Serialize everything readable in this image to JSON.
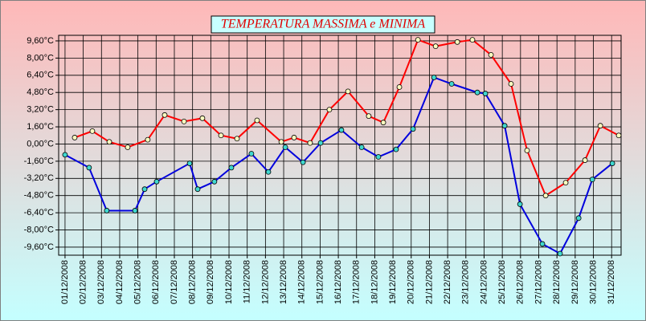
{
  "chart_data": {
    "type": "line",
    "title": "TEMPERATURA MASSIMA e MINIMA",
    "xlim": [
      0.65,
      31.52
    ],
    "xticks": [
      {
        "value": 1,
        "label": "01/12/2008"
      },
      {
        "value": 2,
        "label": "02/12/2008"
      },
      {
        "value": 3,
        "label": "03/12/2008"
      },
      {
        "value": 4,
        "label": "04/12/2008"
      },
      {
        "value": 5,
        "label": "05/12/2008"
      },
      {
        "value": 6,
        "label": "06/12/2008"
      },
      {
        "value": 7,
        "label": "07/12/2008"
      },
      {
        "value": 8,
        "label": "08/12/2008"
      },
      {
        "value": 9,
        "label": "09/12/2008"
      },
      {
        "value": 10,
        "label": "10/12/2008"
      },
      {
        "value": 11,
        "label": "11/12/2008"
      },
      {
        "value": 12,
        "label": "12/12/2008"
      },
      {
        "value": 13,
        "label": "13/12/2008"
      },
      {
        "value": 14,
        "label": "14/12/2008"
      },
      {
        "value": 15,
        "label": "15/12/2008"
      },
      {
        "value": 16,
        "label": "16/12/2008"
      },
      {
        "value": 17,
        "label": "17/12/2008"
      },
      {
        "value": 18,
        "label": "18/12/2008"
      },
      {
        "value": 19,
        "label": "19/12/2008"
      },
      {
        "value": 20,
        "label": "20/12/2008"
      },
      {
        "value": 21,
        "label": "21/12/2008"
      },
      {
        "value": 22,
        "label": "22/12/2008"
      },
      {
        "value": 23,
        "label": "23/12/2008"
      },
      {
        "value": 24,
        "label": "24/12/2008"
      },
      {
        "value": 25,
        "label": "25/12/2008"
      },
      {
        "value": 26,
        "label": "26/12/2008"
      },
      {
        "value": 27,
        "label": "27/12/2008"
      },
      {
        "value": 28,
        "label": "28/12/2008"
      },
      {
        "value": 29,
        "label": "29/12/2008"
      },
      {
        "value": 30,
        "label": "30/12/2008"
      },
      {
        "value": 31,
        "label": "31/12/2008"
      }
    ],
    "ylim": [
      -10.35,
      10.12
    ],
    "yticks": [
      {
        "value": 9.6,
        "label": "9,60°C"
      },
      {
        "value": 8.0,
        "label": "8,00°C"
      },
      {
        "value": 6.4,
        "label": "6,40°C"
      },
      {
        "value": 4.8,
        "label": "4,80°C"
      },
      {
        "value": 3.2,
        "label": "3,20°C"
      },
      {
        "value": 1.6,
        "label": "1,60°C"
      },
      {
        "value": 0,
        "label": "0,00°C"
      },
      {
        "value": -1.6,
        "label": "-1,60°C"
      },
      {
        "value": -3.2,
        "label": "-3,20°C"
      },
      {
        "value": -4.8,
        "label": "-4,80°C"
      },
      {
        "value": -6.4,
        "label": "-6,40°C"
      },
      {
        "value": -8.0,
        "label": "-8,00°C"
      },
      {
        "value": -9.6,
        "label": "-9,60°C"
      }
    ],
    "grid": true,
    "series": [
      {
        "color": "#ff0000",
        "marker_fill": "#ffffc0",
        "x": [
          1.53,
          2.5,
          3.43,
          4.44,
          5.54,
          6.47,
          7.53,
          8.54,
          9.56,
          10.44,
          11.54,
          12.87,
          13.57,
          14.45,
          15.51,
          16.53,
          17.67,
          18.47,
          19.35,
          20.37,
          21.34,
          22.53,
          23.36,
          24.38,
          25.48,
          26.36,
          27.38,
          28.48,
          29.54,
          30.38,
          31.39
        ],
        "values": [
          0.6,
          1.2,
          0.2,
          -0.3,
          0.4,
          2.7,
          2.1,
          2.4,
          0.8,
          0.5,
          2.2,
          0.2,
          0.6,
          0.1,
          3.2,
          4.9,
          2.6,
          2.0,
          5.3,
          9.7,
          9.1,
          9.5,
          9.7,
          8.3,
          5.6,
          -0.6,
          -4.8,
          -3.6,
          -1.5,
          1.7,
          0.8
        ]
      },
      {
        "color": "#0000dd",
        "marker_fill": "#40d8d0",
        "x": [
          1.0,
          2.32,
          3.29,
          4.84,
          5.37,
          6.03,
          7.84,
          8.28,
          9.2,
          10.13,
          11.23,
          12.16,
          13.09,
          14.06,
          15.03,
          16.17,
          17.28,
          18.2,
          19.17,
          20.1,
          21.25,
          22.22,
          23.63,
          24.07,
          25.13,
          25.97,
          27.2,
          28.17,
          29.19,
          29.94,
          31.04
        ],
        "values": [
          -1.0,
          -2.2,
          -6.2,
          -6.2,
          -4.2,
          -3.5,
          -1.8,
          -4.2,
          -3.5,
          -2.2,
          -0.9,
          -2.6,
          -0.3,
          -1.7,
          0.1,
          1.3,
          -0.3,
          -1.2,
          -0.5,
          1.4,
          6.2,
          5.6,
          4.8,
          4.7,
          1.7,
          -5.6,
          -9.3,
          -10.2,
          -6.9,
          -3.3,
          -1.8
        ]
      }
    ]
  }
}
